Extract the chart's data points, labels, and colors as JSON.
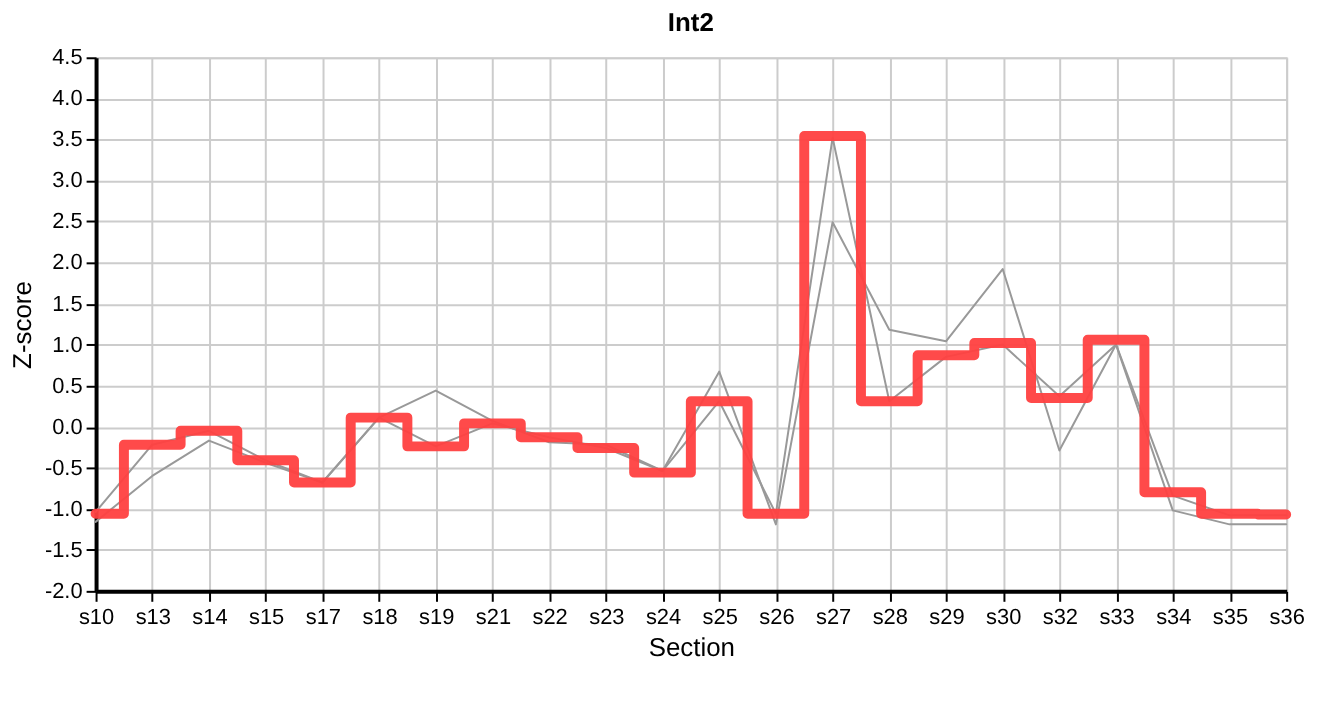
{
  "chart_data": {
    "type": "line",
    "title": "Int2",
    "xlabel": "Section",
    "ylabel": "Z-score",
    "categories": [
      "s10",
      "s13",
      "s14",
      "s15",
      "s17",
      "s18",
      "s19",
      "s21",
      "s22",
      "s23",
      "s24",
      "s25",
      "s26",
      "s27",
      "s28",
      "s29",
      "s30",
      "s32",
      "s33",
      "s34",
      "s35",
      "s36"
    ],
    "series": [
      {
        "color": "#999999",
        "values": [
          -1.16,
          -0.6,
          -0.17,
          -0.44,
          -0.68,
          0.11,
          0.44,
          0.07,
          -0.19,
          -0.22,
          -0.54,
          0.67,
          -1.19,
          2.49,
          1.18,
          1.04,
          1.92,
          -0.29,
          1.0,
          -1.02,
          -1.19,
          -1.19
        ]
      },
      {
        "color": "#999999",
        "values": [
          -1.04,
          -0.22,
          -0.05,
          -0.41,
          -0.68,
          0.11,
          -0.24,
          0.04,
          -0.13,
          -0.26,
          -0.54,
          0.31,
          -1.06,
          3.52,
          0.31,
          0.85,
          1.0,
          0.37,
          1.0,
          -0.84,
          -1.08,
          -1.08
        ]
      },
      {
        "type": "step",
        "color": "#ff4040",
        "values": [
          -1.06,
          -0.22,
          -0.05,
          -0.41,
          -0.68,
          0.11,
          -0.24,
          0.04,
          -0.13,
          -0.26,
          -0.56,
          0.31,
          -1.06,
          3.54,
          0.31,
          0.87,
          1.02,
          0.35,
          1.06,
          -0.8,
          -1.06,
          -1.07
        ]
      }
    ],
    "ylim": [
      -2.0,
      4.5
    ],
    "yticks": [
      {
        "value": -2.0,
        "label": "-2.0"
      },
      {
        "value": -1.5,
        "label": "-1.5"
      },
      {
        "value": -1.0,
        "label": "-1.0"
      },
      {
        "value": -0.5,
        "label": "-0.5"
      },
      {
        "value": 0.0,
        "label": "0.0"
      },
      {
        "value": 0.5,
        "label": "0.5"
      },
      {
        "value": 1.0,
        "label": "1.0"
      },
      {
        "value": 1.5,
        "label": "1.5"
      },
      {
        "value": 2.0,
        "label": "2.0"
      },
      {
        "value": 2.5,
        "label": "2.5"
      },
      {
        "value": 3.0,
        "label": "3.0"
      },
      {
        "value": 3.5,
        "label": "3.5"
      },
      {
        "value": 4.0,
        "label": "4.0"
      },
      {
        "value": 4.5,
        "label": "4.5"
      }
    ],
    "grid": true,
    "marker": "none",
    "line_style": "solid"
  }
}
